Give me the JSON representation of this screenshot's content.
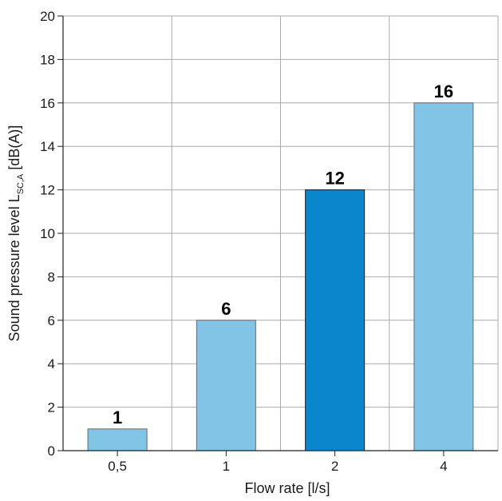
{
  "chart_data": {
    "type": "bar",
    "categories": [
      "0,5",
      "1",
      "2",
      "4"
    ],
    "values": [
      1,
      6,
      12,
      16
    ],
    "data_labels": [
      "1",
      "6",
      "12",
      "16"
    ],
    "highlighted_index": 2,
    "xlabel": "Flow rate [l/s]",
    "ylabel": {
      "main": "Sound pressure level L",
      "subscript": "SC,A",
      "unit": " [dB(A)]"
    },
    "ylim": [
      0,
      20
    ],
    "yticks": [
      "0",
      "2",
      "4",
      "6",
      "8",
      "10",
      "12",
      "14",
      "16",
      "18",
      "20"
    ],
    "grid": true,
    "colors": {
      "bar": "#82c4e6",
      "bar_highlight": "#0a86cd",
      "grid": "#aaaaaa",
      "axis": "#222222"
    }
  }
}
